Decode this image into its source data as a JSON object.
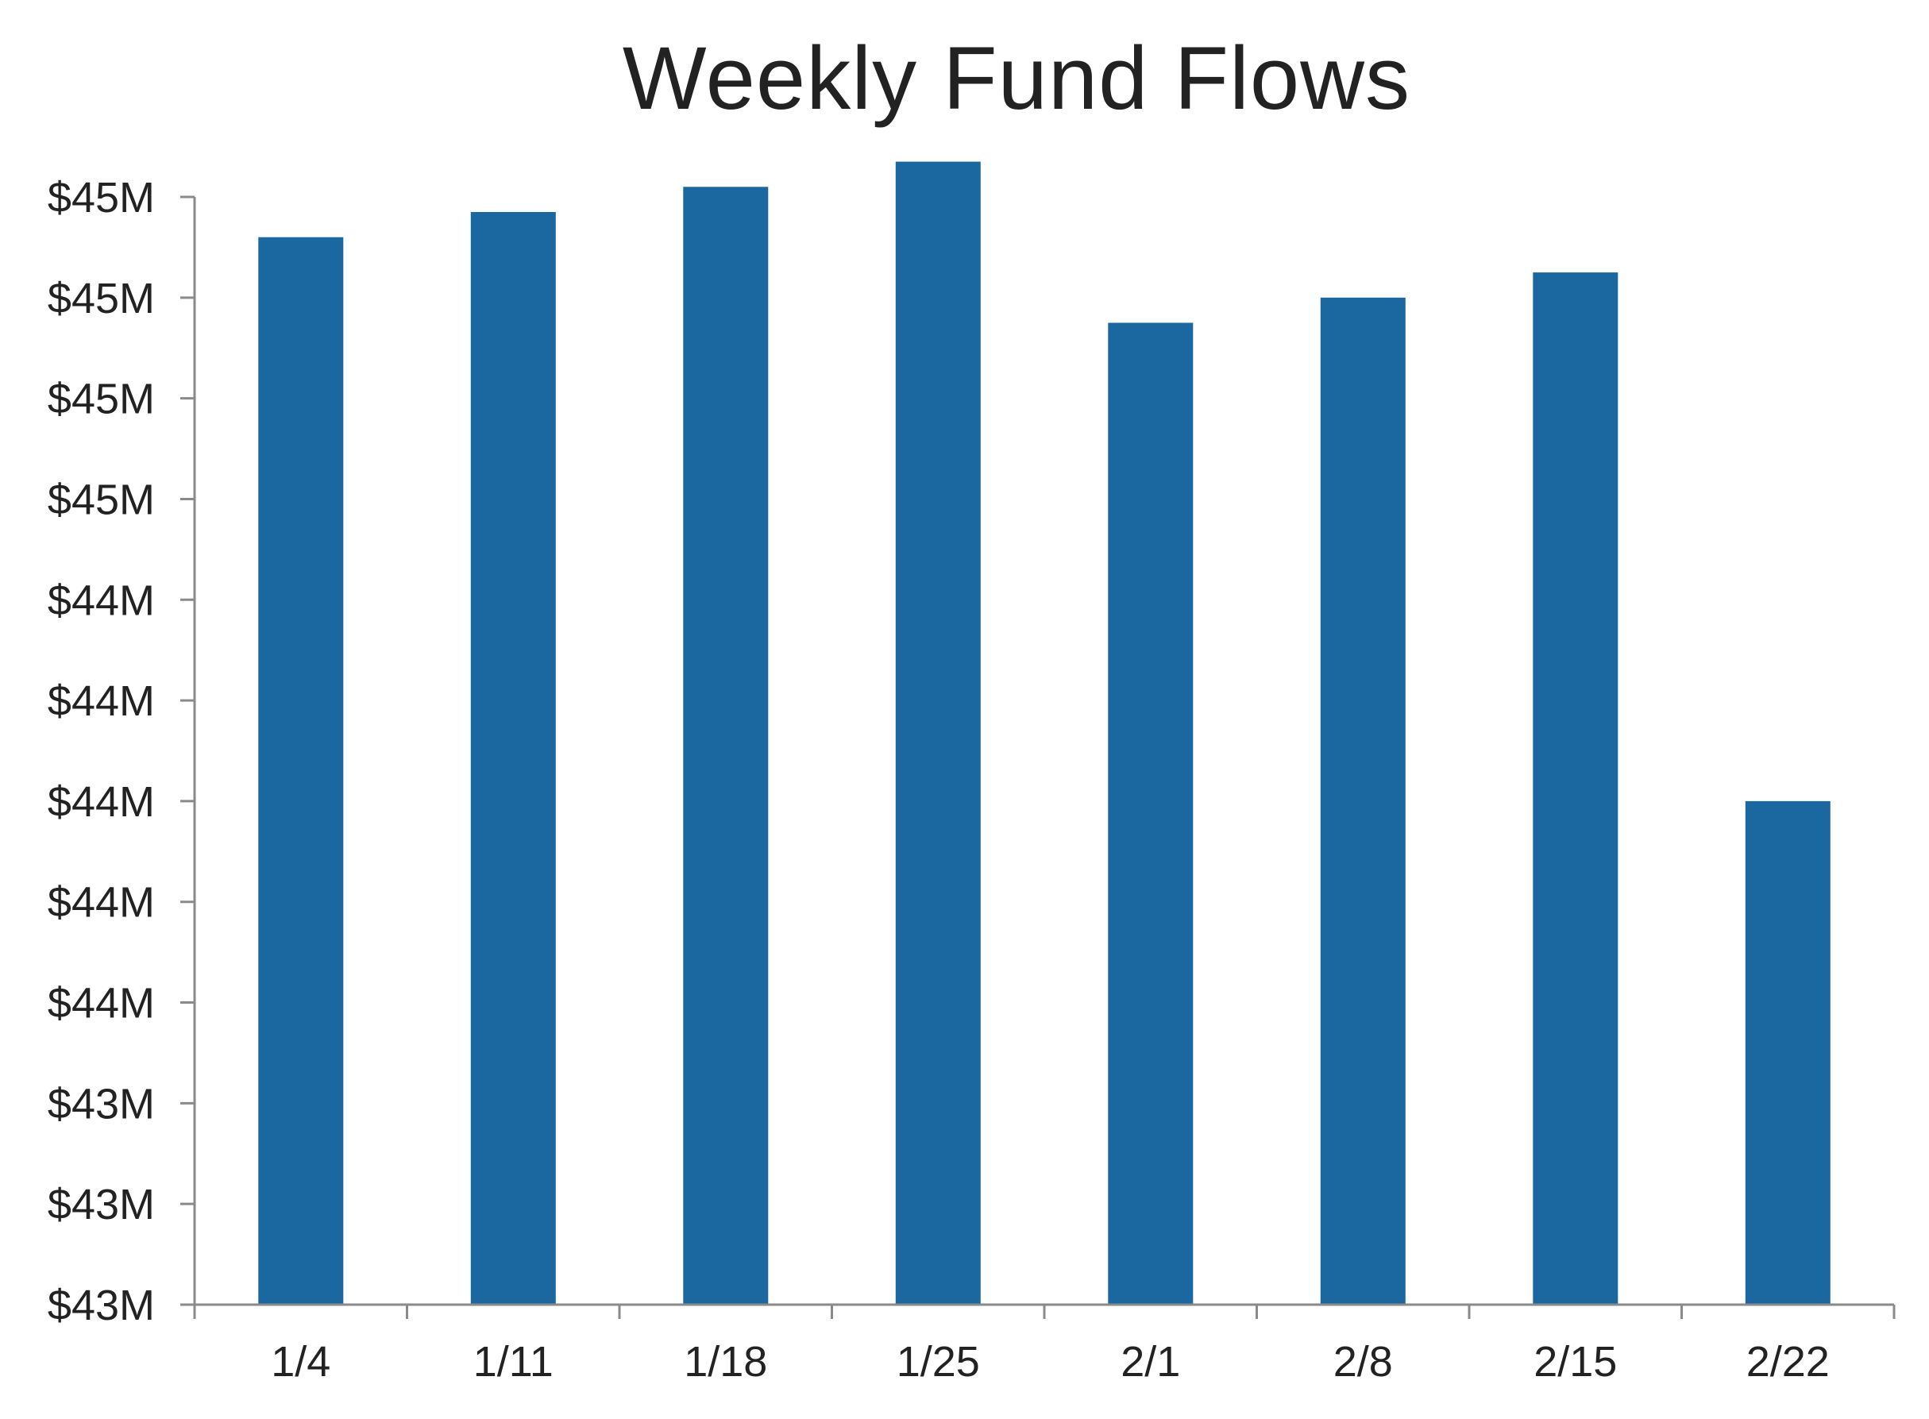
{
  "chart_data": {
    "type": "bar",
    "title": "Weekly Fund Flows",
    "xlabel": "",
    "ylabel": "",
    "categories": [
      "1/4",
      "1/11",
      "1/18",
      "1/25",
      "2/1",
      "2/8",
      "2/15",
      "2/22"
    ],
    "values": [
      44.92,
      44.97,
      45.02,
      45.07,
      44.75,
      44.8,
      44.85,
      43.8
    ],
    "ylim": [
      42.8,
      45.0
    ],
    "y_ticks": [
      {
        "value": 42.8,
        "label": "$43M"
      },
      {
        "value": 43.0,
        "label": "$43M"
      },
      {
        "value": 43.2,
        "label": "$43M"
      },
      {
        "value": 43.4,
        "label": "$44M"
      },
      {
        "value": 43.6,
        "label": "$44M"
      },
      {
        "value": 43.8,
        "label": "$44M"
      },
      {
        "value": 44.0,
        "label": "$44M"
      },
      {
        "value": 44.2,
        "label": "$44M"
      },
      {
        "value": 44.4,
        "label": "$45M"
      },
      {
        "value": 44.6,
        "label": "$45M"
      },
      {
        "value": 44.8,
        "label": "$45M"
      },
      {
        "value": 45.0,
        "label": "$45M"
      }
    ],
    "bar_color": "#1b68a0",
    "axis_color": "#8a8a8a",
    "grid": false,
    "legend": "none"
  }
}
